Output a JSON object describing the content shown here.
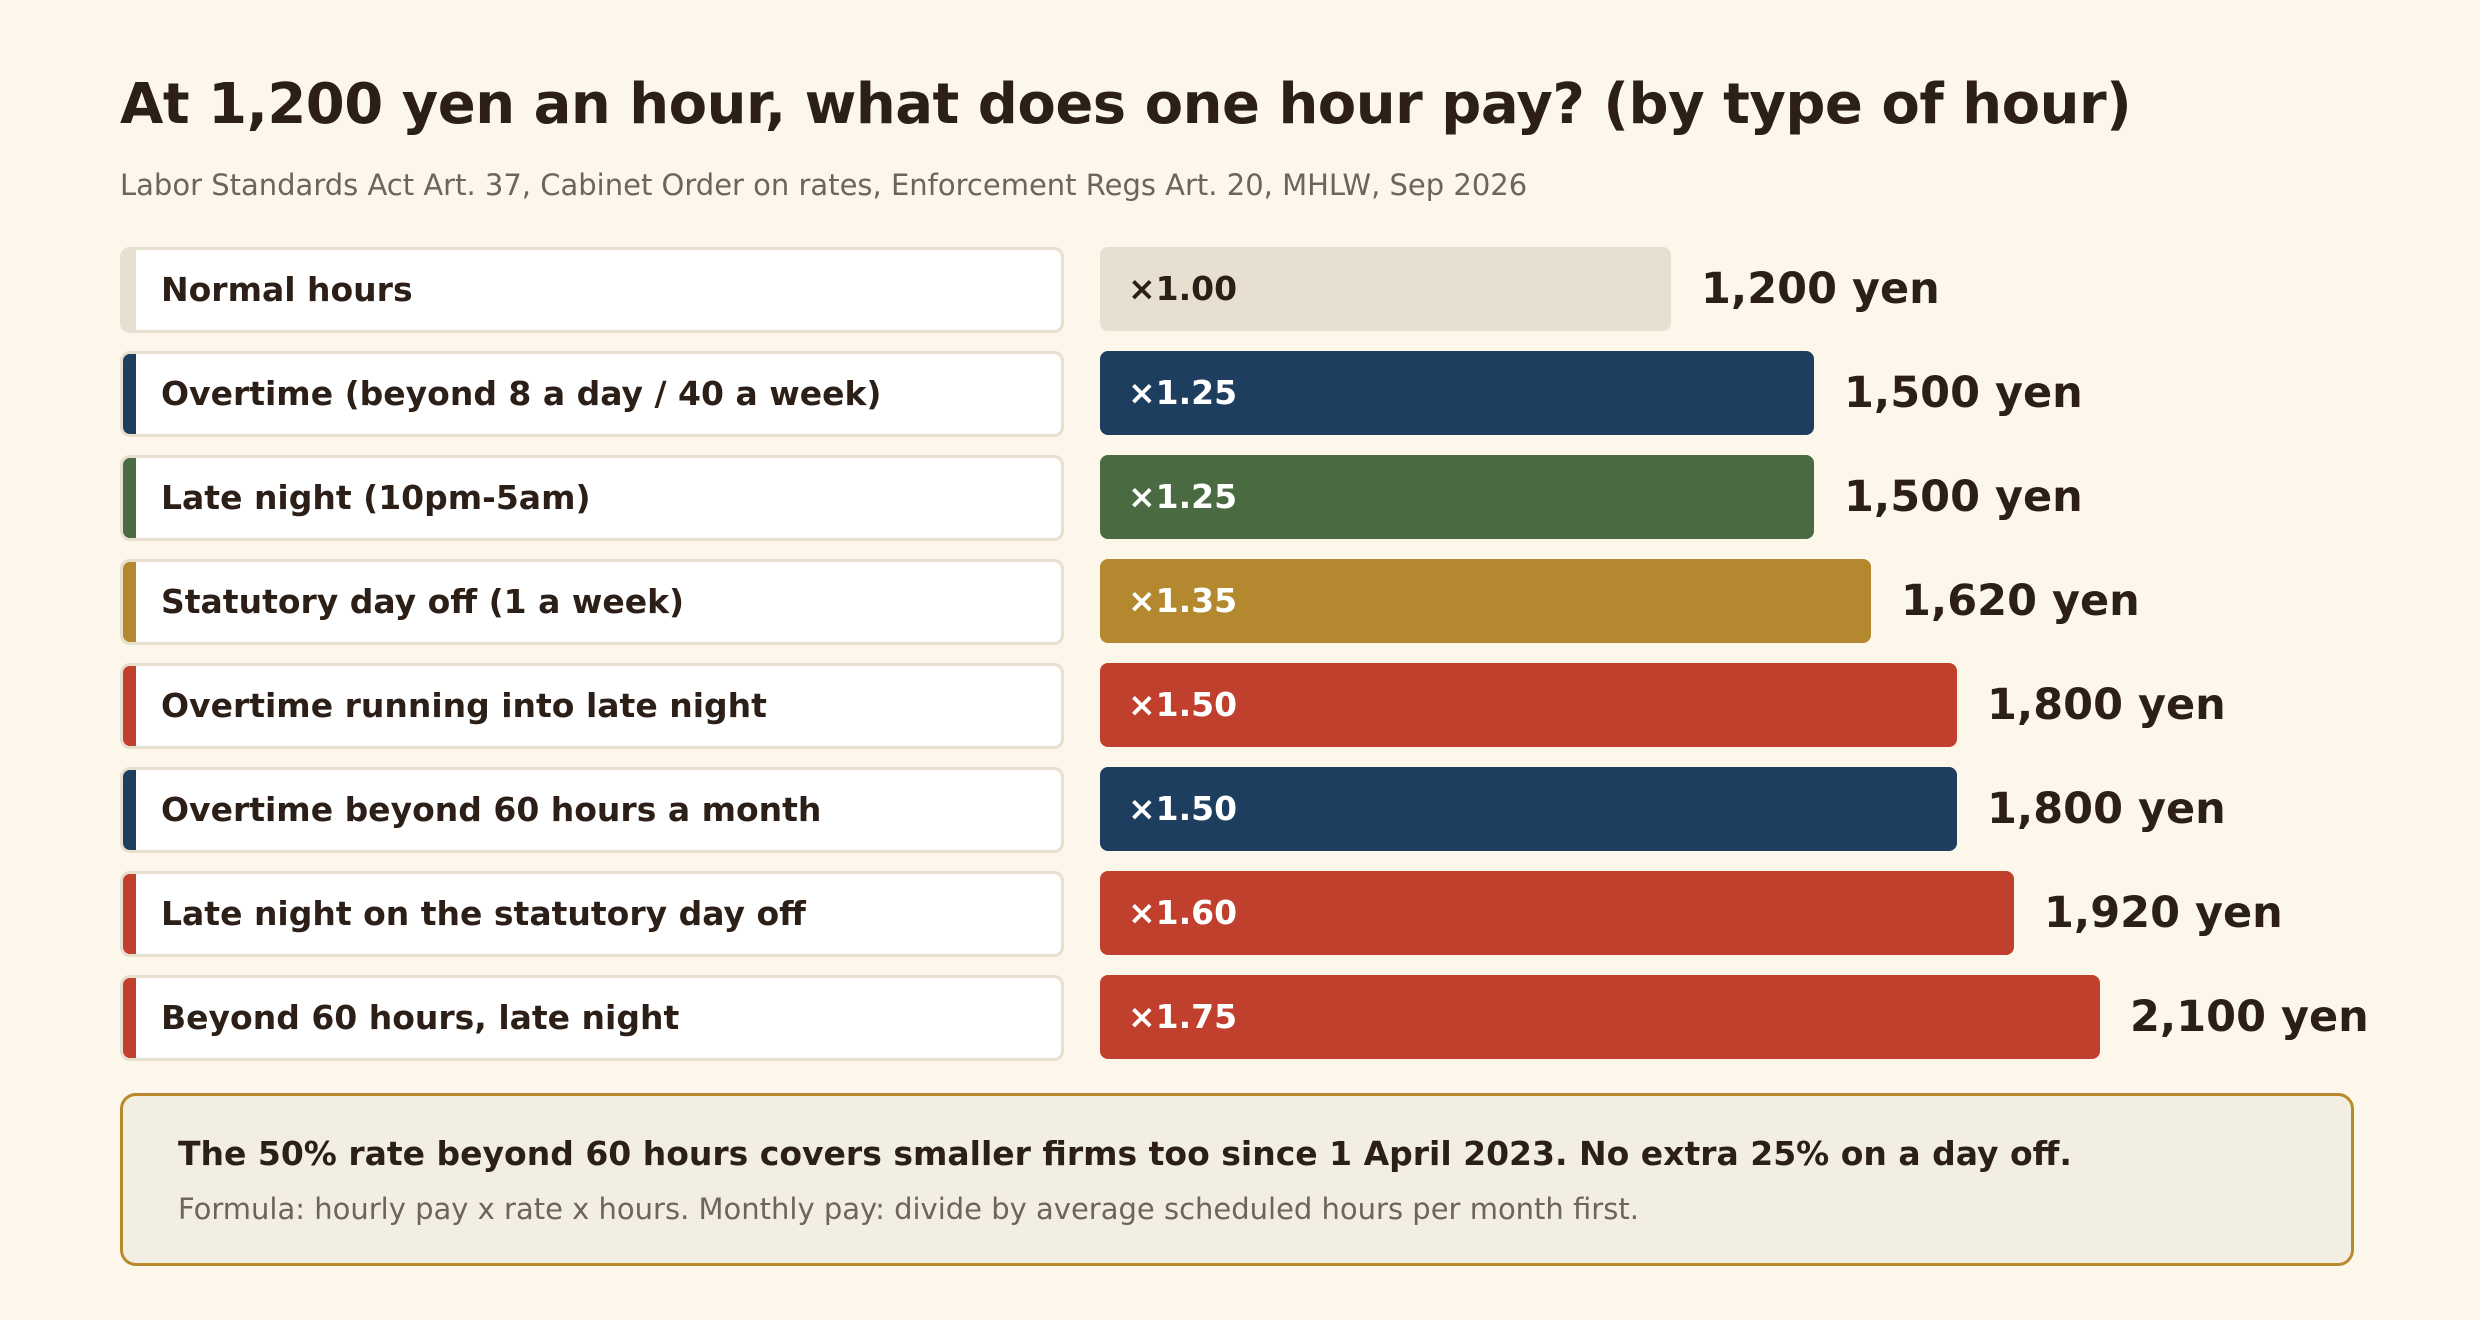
{
  "chart": {
    "title": "At 1,200 yen an hour, what does one hour pay? (by type of hour)",
    "subtitle": "Labor Standards Act Art. 37, Cabinet Order on rates, Enforcement Regs Art. 20, MHLW, Sep 2026"
  },
  "colors": {
    "background": "#fcf7ea",
    "normal": "#e7dfcf",
    "navy": "#1e3e5f",
    "green": "#4a6b42",
    "gold": "#b3882e",
    "red": "#c1402d",
    "note_border": "#b8892e",
    "note_bg": "#f3eee2"
  },
  "chart_data": {
    "type": "bar",
    "orientation": "horizontal",
    "title": "At 1,200 yen an hour, what does one hour pay? (by type of hour)",
    "subtitle": "Labor Standards Act Art. 37, Cabinet Order on rates, Enforcement Regs Art. 20, MHLW, Sep 2026",
    "base_hourly_pay": 1200,
    "xlim": [
      0,
      2100
    ],
    "grid": false,
    "legend": "none",
    "categories": [
      "Normal hours",
      "Overtime (beyond 8 a day / 40 a week)",
      "Late night (10pm-5am)",
      "Statutory day off (1 a week)",
      "Overtime running into late night",
      "Overtime beyond 60 hours a month",
      "Late night on the statutory day off",
      "Beyond 60 hours, late night"
    ],
    "values": [
      1200,
      1500,
      1500,
      1620,
      1800,
      1800,
      1920,
      2100
    ],
    "multiplier_labels": [
      "×1.00",
      "×1.25",
      "×1.25",
      "×1.35",
      "×1.50",
      "×1.50",
      "×1.60",
      "×1.75"
    ],
    "value_labels": [
      "1,200 yen",
      "1,500 yen",
      "1,500 yen",
      "1,620 yen",
      "1,800 yen",
      "1,800 yen",
      "1,920 yen",
      "2,100 yen"
    ],
    "bar_colors": [
      "#e7dfcf",
      "#1e3e5f",
      "#4a6b42",
      "#b3882e",
      "#c1402d",
      "#1e3e5f",
      "#c1402d",
      "#c1402d"
    ],
    "multiplier_text_colors": [
      "#2b1f17",
      "#ffffff",
      "#ffffff",
      "#ffffff",
      "#ffffff",
      "#ffffff",
      "#ffffff",
      "#ffffff"
    ]
  },
  "note": {
    "main": "The 50% rate beyond 60 hours covers smaller firms too since 1 April 2023. No extra 25% on a day off.",
    "sub": "Formula: hourly pay x rate x hours. Monthly pay: divide by average scheduled hours per month first."
  }
}
